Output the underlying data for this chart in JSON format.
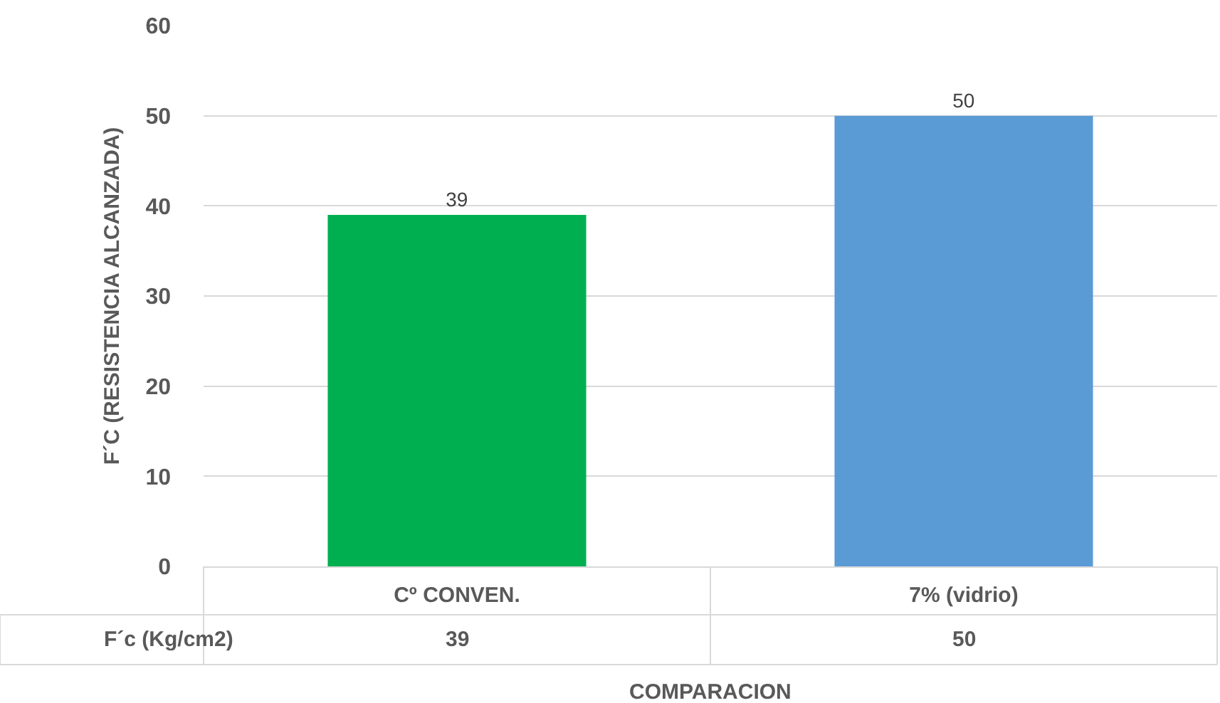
{
  "chart_data": {
    "type": "bar",
    "xlabel": "COMPARACION",
    "ylabel": "F´C (RESISTENCIA ALCANZADA)",
    "categories": [
      "Cº CONVEN.",
      "7% (vidrio)"
    ],
    "series": [
      {
        "name": "F´c (Kg/cm2)",
        "colors": [
          "#00b050",
          "#5b9bd5"
        ],
        "values": [
          39,
          50
        ]
      }
    ],
    "ylim": [
      0,
      60
    ],
    "yticks": [
      0,
      10,
      20,
      30,
      40,
      50,
      60
    ],
    "grid": "y",
    "legend": false,
    "data_labels": true,
    "annotations": [
      "39",
      "50"
    ]
  }
}
